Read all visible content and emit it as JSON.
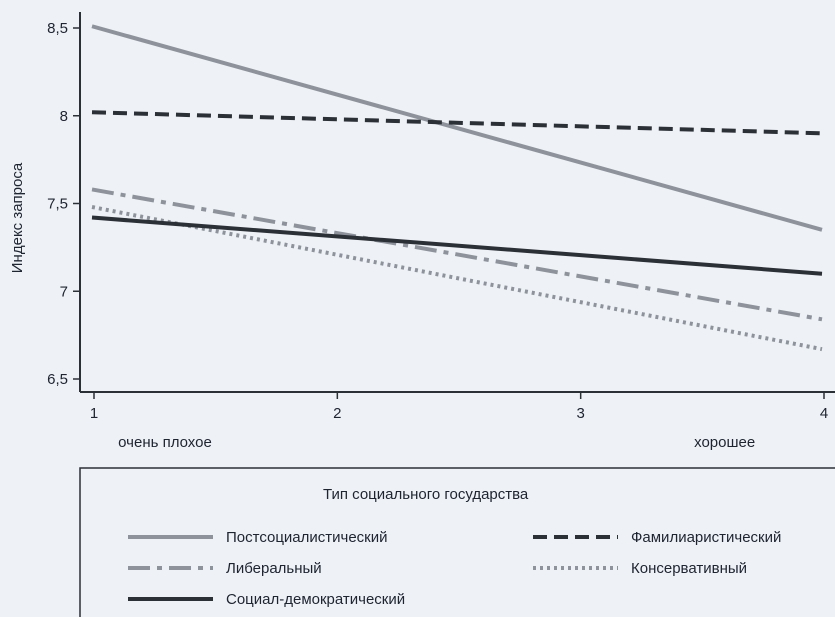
{
  "chart_data": {
    "type": "line",
    "title": "",
    "xlabel": "",
    "ylabel": "Индекс запроса",
    "x": [
      1,
      2,
      3,
      4
    ],
    "xlim": [
      1,
      4
    ],
    "ylim": [
      6.5,
      8.5
    ],
    "yticks": [
      6.5,
      7,
      7.5,
      8,
      8.5
    ],
    "ytick_labels": [
      "6,5",
      "7",
      "7,5",
      "8",
      "8,5"
    ],
    "xticks": [
      1,
      2,
      3,
      4
    ],
    "xtick_labels": [
      "1",
      "2",
      "3",
      "4"
    ],
    "category_labels": [
      {
        "x": 1.3,
        "text": "очень плохое"
      },
      {
        "x": 3.6,
        "text": "хорошее"
      }
    ],
    "grid": false,
    "legend": {
      "title": "Тип социального государства",
      "placement": "bottom"
    },
    "series": [
      {
        "name": "Постсоциалистический",
        "x": [
          1,
          4
        ],
        "values": [
          8.51,
          7.35
        ],
        "color": "#8e939b",
        "dash": "solid"
      },
      {
        "name": "Фамилиаристический",
        "x": [
          1,
          4
        ],
        "values": [
          8.02,
          7.9
        ],
        "color": "#2b2f36",
        "dash": "dash"
      },
      {
        "name": "Либеральный",
        "x": [
          1,
          4
        ],
        "values": [
          7.58,
          6.84
        ],
        "color": "#8e939b",
        "dash": "dashdot"
      },
      {
        "name": "Консервативный",
        "x": [
          1,
          4
        ],
        "values": [
          7.48,
          6.67
        ],
        "color": "#8e939b",
        "dash": "dot"
      },
      {
        "name": "Социал-демократический",
        "x": [
          1,
          4
        ],
        "values": [
          7.42,
          7.1
        ],
        "color": "#2b2f36",
        "dash": "solid"
      }
    ]
  }
}
